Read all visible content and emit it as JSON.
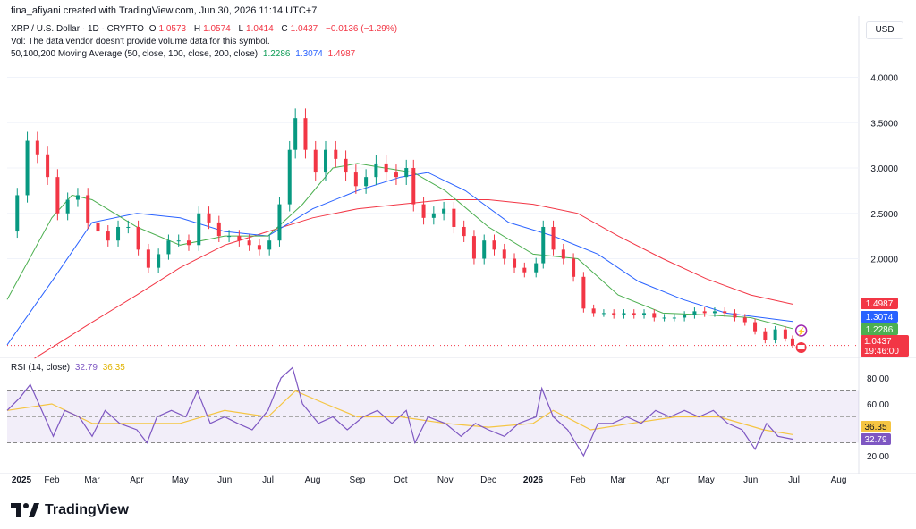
{
  "header": {
    "credit": "fina_afiyani created with TradingView.com, Jun 30, 2026 11:14 UTC+7"
  },
  "legend": {
    "symbol": "XRP / U.S. Dollar · 1D · CRYPTO",
    "open_label": "O",
    "open": "1.0573",
    "high_label": "H",
    "high": "1.0574",
    "low_label": "L",
    "low": "1.0414",
    "close_label": "C",
    "close": "1.0437",
    "change": "−0.0136 (−1.29%)",
    "vol_note": "Vol: The data vendor doesn't provide volume data for this symbol.",
    "ma_label": "50,100,200 Moving Average (50, close, 100, close, 200, close)",
    "ma50": "1.2286",
    "ma100": "1.3074",
    "ma200": "1.4987",
    "rsi_label": "RSI (14, close)",
    "rsi_value": "32.79",
    "rsi_ma_value": "36.35"
  },
  "currency": "USD",
  "price_tags": {
    "ma200": "1.4987",
    "ma100": "1.3074",
    "ma50": "1.2286",
    "last": "1.0437",
    "countdown": "19:46:00"
  },
  "rsi_tags": {
    "rsi_ma": "36.35",
    "rsi": "32.79"
  },
  "colors": {
    "up": "#089981",
    "down": "#f23645",
    "ma50": "#4caf50",
    "ma100": "#2962ff",
    "ma200": "#f23645",
    "rsi": "#7e57c2",
    "rsi_ma": "#f5c542"
  },
  "footer": {
    "brand": "TradingView"
  },
  "chart_data": {
    "type": "candlestick",
    "price_axis": {
      "ticks": [
        "4.0000",
        "3.5000",
        "3.0000",
        "2.5000",
        "2.0000"
      ],
      "values": [
        4.0,
        3.5,
        3.0,
        2.5,
        2.0
      ]
    },
    "rsi_axis": {
      "ticks": [
        "80.00",
        "60.00",
        "20.00"
      ],
      "values": [
        80,
        60,
        20
      ],
      "band": [
        30,
        70
      ]
    },
    "time_axis": [
      "2025",
      "Feb",
      "Mar",
      "Apr",
      "May",
      "Jun",
      "Jul",
      "Aug",
      "Sep",
      "Oct",
      "Nov",
      "Dec",
      "2026",
      "Feb",
      "Mar",
      "Apr",
      "May",
      "Jun",
      "Jul",
      "Aug"
    ],
    "price_path": [
      [
        "2025-01-01",
        2.3
      ],
      [
        "2025-01-08",
        2.7
      ],
      [
        "2025-01-15",
        3.3
      ],
      [
        "2025-01-22",
        3.15
      ],
      [
        "2025-01-29",
        2.9
      ],
      [
        "2025-02-05",
        2.5
      ],
      [
        "2025-02-12",
        2.65
      ],
      [
        "2025-02-19",
        2.7
      ],
      [
        "2025-02-26",
        2.4
      ],
      [
        "2025-03-05",
        2.3
      ],
      [
        "2025-03-12",
        2.2
      ],
      [
        "2025-03-19",
        2.35
      ],
      [
        "2025-03-26",
        2.35
      ],
      [
        "2025-04-02",
        2.1
      ],
      [
        "2025-04-09",
        1.9
      ],
      [
        "2025-04-16",
        2.05
      ],
      [
        "2025-04-23",
        2.2
      ],
      [
        "2025-04-30",
        2.2
      ],
      [
        "2025-05-07",
        2.15
      ],
      [
        "2025-05-14",
        2.5
      ],
      [
        "2025-05-21",
        2.4
      ],
      [
        "2025-05-28",
        2.25
      ],
      [
        "2025-06-04",
        2.25
      ],
      [
        "2025-06-11",
        2.2
      ],
      [
        "2025-06-18",
        2.15
      ],
      [
        "2025-06-25",
        2.1
      ],
      [
        "2025-07-02",
        2.2
      ],
      [
        "2025-07-09",
        2.6
      ],
      [
        "2025-07-16",
        3.2
      ],
      [
        "2025-07-20",
        3.55
      ],
      [
        "2025-07-27",
        3.2
      ],
      [
        "2025-08-03",
        2.95
      ],
      [
        "2025-08-10",
        3.2
      ],
      [
        "2025-08-17",
        3.1
      ],
      [
        "2025-08-24",
        2.95
      ],
      [
        "2025-08-31",
        2.8
      ],
      [
        "2025-09-07",
        2.9
      ],
      [
        "2025-09-14",
        3.05
      ],
      [
        "2025-09-21",
        2.95
      ],
      [
        "2025-09-28",
        2.9
      ],
      [
        "2025-10-05",
        3.0
      ],
      [
        "2025-10-10",
        2.6
      ],
      [
        "2025-10-17",
        2.45
      ],
      [
        "2025-10-24",
        2.5
      ],
      [
        "2025-10-31",
        2.55
      ],
      [
        "2025-11-07",
        2.35
      ],
      [
        "2025-11-14",
        2.25
      ],
      [
        "2025-11-21",
        2.0
      ],
      [
        "2025-11-28",
        2.2
      ],
      [
        "2025-12-05",
        2.1
      ],
      [
        "2025-12-12",
        2.0
      ],
      [
        "2025-12-19",
        1.9
      ],
      [
        "2025-12-26",
        1.85
      ],
      [
        "2026-01-03",
        1.95
      ],
      [
        "2026-01-08",
        2.35
      ],
      [
        "2026-01-15",
        2.1
      ],
      [
        "2026-01-22",
        2.0
      ],
      [
        "2026-01-29",
        1.8
      ],
      [
        "2026-02-05",
        1.45
      ],
      [
        "2026-02-12",
        1.4
      ],
      [
        "2026-02-19",
        1.4
      ],
      [
        "2026-02-26",
        1.38
      ],
      [
        "2026-03-05",
        1.4
      ],
      [
        "2026-03-12",
        1.38
      ],
      [
        "2026-03-19",
        1.4
      ],
      [
        "2026-03-26",
        1.35
      ],
      [
        "2026-04-02",
        1.35
      ],
      [
        "2026-04-09",
        1.35
      ],
      [
        "2026-04-16",
        1.38
      ],
      [
        "2026-04-23",
        1.42
      ],
      [
        "2026-04-30",
        1.4
      ],
      [
        "2026-05-07",
        1.42
      ],
      [
        "2026-05-14",
        1.4
      ],
      [
        "2026-05-21",
        1.35
      ],
      [
        "2026-05-28",
        1.3
      ],
      [
        "2026-06-04",
        1.2
      ],
      [
        "2026-06-11",
        1.1
      ],
      [
        "2026-06-18",
        1.22
      ],
      [
        "2026-06-25",
        1.12
      ],
      [
        "2026-06-30",
        1.0437
      ]
    ],
    "ma50_path": [
      [
        "2025-01-01",
        1.55
      ],
      [
        "2025-02-01",
        2.45
      ],
      [
        "2025-02-15",
        2.7
      ],
      [
        "2025-03-01",
        2.65
      ],
      [
        "2025-04-01",
        2.35
      ],
      [
        "2025-05-01",
        2.15
      ],
      [
        "2025-06-01",
        2.25
      ],
      [
        "2025-07-01",
        2.25
      ],
      [
        "2025-07-25",
        2.6
      ],
      [
        "2025-08-15",
        3.0
      ],
      [
        "2025-09-01",
        3.05
      ],
      [
        "2025-09-20",
        3.0
      ],
      [
        "2025-10-10",
        2.95
      ],
      [
        "2025-11-01",
        2.75
      ],
      [
        "2025-12-01",
        2.35
      ],
      [
        "2026-01-01",
        2.05
      ],
      [
        "2026-02-01",
        2.0
      ],
      [
        "2026-03-01",
        1.6
      ],
      [
        "2026-04-01",
        1.4
      ],
      [
        "2026-05-01",
        1.38
      ],
      [
        "2026-06-01",
        1.35
      ],
      [
        "2026-06-30",
        1.2286
      ]
    ],
    "ma100_path": [
      [
        "2025-01-01",
        1.05
      ],
      [
        "2025-02-01",
        1.75
      ],
      [
        "2025-03-01",
        2.4
      ],
      [
        "2025-04-01",
        2.5
      ],
      [
        "2025-05-01",
        2.45
      ],
      [
        "2025-06-01",
        2.3
      ],
      [
        "2025-07-01",
        2.25
      ],
      [
        "2025-08-01",
        2.55
      ],
      [
        "2025-09-01",
        2.75
      ],
      [
        "2025-10-01",
        2.9
      ],
      [
        "2025-10-20",
        2.95
      ],
      [
        "2025-11-15",
        2.75
      ],
      [
        "2025-12-15",
        2.4
      ],
      [
        "2026-01-15",
        2.25
      ],
      [
        "2026-02-15",
        2.05
      ],
      [
        "2026-03-15",
        1.75
      ],
      [
        "2026-04-15",
        1.55
      ],
      [
        "2026-05-15",
        1.4
      ],
      [
        "2026-06-30",
        1.3074
      ]
    ],
    "ma200_path": [
      [
        "2025-01-20",
        0.9
      ],
      [
        "2025-03-01",
        1.3
      ],
      [
        "2025-04-01",
        1.6
      ],
      [
        "2025-05-01",
        1.9
      ],
      [
        "2025-06-01",
        2.15
      ],
      [
        "2025-07-01",
        2.3
      ],
      [
        "2025-08-01",
        2.45
      ],
      [
        "2025-09-01",
        2.55
      ],
      [
        "2025-10-01",
        2.6
      ],
      [
        "2025-11-01",
        2.65
      ],
      [
        "2025-12-01",
        2.65
      ],
      [
        "2026-01-01",
        2.6
      ],
      [
        "2026-02-01",
        2.5
      ],
      [
        "2026-03-01",
        2.25
      ],
      [
        "2026-04-01",
        2.0
      ],
      [
        "2026-05-01",
        1.78
      ],
      [
        "2026-06-01",
        1.6
      ],
      [
        "2026-06-30",
        1.4987
      ]
    ],
    "rsi_path": [
      [
        "2025-01-01",
        55
      ],
      [
        "2025-01-10",
        65
      ],
      [
        "2025-01-17",
        75
      ],
      [
        "2025-01-25",
        55
      ],
      [
        "2025-02-02",
        35
      ],
      [
        "2025-02-10",
        55
      ],
      [
        "2025-02-20",
        50
      ],
      [
        "2025-03-01",
        35
      ],
      [
        "2025-03-10",
        55
      ],
      [
        "2025-03-20",
        45
      ],
      [
        "2025-04-01",
        40
      ],
      [
        "2025-04-08",
        30
      ],
      [
        "2025-04-15",
        50
      ],
      [
        "2025-04-25",
        55
      ],
      [
        "2025-05-05",
        50
      ],
      [
        "2025-05-13",
        70
      ],
      [
        "2025-05-22",
        45
      ],
      [
        "2025-06-01",
        50
      ],
      [
        "2025-06-10",
        45
      ],
      [
        "2025-06-20",
        40
      ],
      [
        "2025-07-01",
        55
      ],
      [
        "2025-07-10",
        80
      ],
      [
        "2025-07-18",
        88
      ],
      [
        "2025-07-25",
        60
      ],
      [
        "2025-08-05",
        45
      ],
      [
        "2025-08-15",
        50
      ],
      [
        "2025-08-25",
        40
      ],
      [
        "2025-09-05",
        50
      ],
      [
        "2025-09-15",
        55
      ],
      [
        "2025-09-25",
        45
      ],
      [
        "2025-10-05",
        55
      ],
      [
        "2025-10-11",
        30
      ],
      [
        "2025-10-20",
        50
      ],
      [
        "2025-11-01",
        45
      ],
      [
        "2025-11-12",
        35
      ],
      [
        "2025-11-22",
        45
      ],
      [
        "2025-12-01",
        40
      ],
      [
        "2025-12-12",
        35
      ],
      [
        "2025-12-22",
        45
      ],
      [
        "2026-01-03",
        50
      ],
      [
        "2026-01-07",
        72
      ],
      [
        "2026-01-15",
        50
      ],
      [
        "2026-01-25",
        40
      ],
      [
        "2026-02-05",
        20
      ],
      [
        "2026-02-15",
        45
      ],
      [
        "2026-02-25",
        45
      ],
      [
        "2026-03-07",
        50
      ],
      [
        "2026-03-17",
        45
      ],
      [
        "2026-03-27",
        55
      ],
      [
        "2026-04-06",
        50
      ],
      [
        "2026-04-16",
        55
      ],
      [
        "2026-04-26",
        50
      ],
      [
        "2026-05-06",
        55
      ],
      [
        "2026-05-16",
        45
      ],
      [
        "2026-05-26",
        40
      ],
      [
        "2026-06-04",
        25
      ],
      [
        "2026-06-12",
        45
      ],
      [
        "2026-06-20",
        35
      ],
      [
        "2026-06-30",
        32.79
      ]
    ],
    "rsi_ma_path": [
      [
        "2025-01-01",
        55
      ],
      [
        "2025-02-01",
        60
      ],
      [
        "2025-03-01",
        45
      ],
      [
        "2025-04-01",
        45
      ],
      [
        "2025-05-01",
        45
      ],
      [
        "2025-06-01",
        55
      ],
      [
        "2025-07-01",
        50
      ],
      [
        "2025-07-20",
        70
      ],
      [
        "2025-08-10",
        60
      ],
      [
        "2025-09-01",
        50
      ],
      [
        "2025-10-01",
        50
      ],
      [
        "2025-11-01",
        45
      ],
      [
        "2025-12-01",
        42
      ],
      [
        "2026-01-01",
        45
      ],
      [
        "2026-01-15",
        55
      ],
      [
        "2026-02-10",
        40
      ],
      [
        "2026-03-10",
        45
      ],
      [
        "2026-04-10",
        50
      ],
      [
        "2026-05-10",
        50
      ],
      [
        "2026-06-10",
        40
      ],
      [
        "2026-06-30",
        36.35
      ]
    ]
  }
}
